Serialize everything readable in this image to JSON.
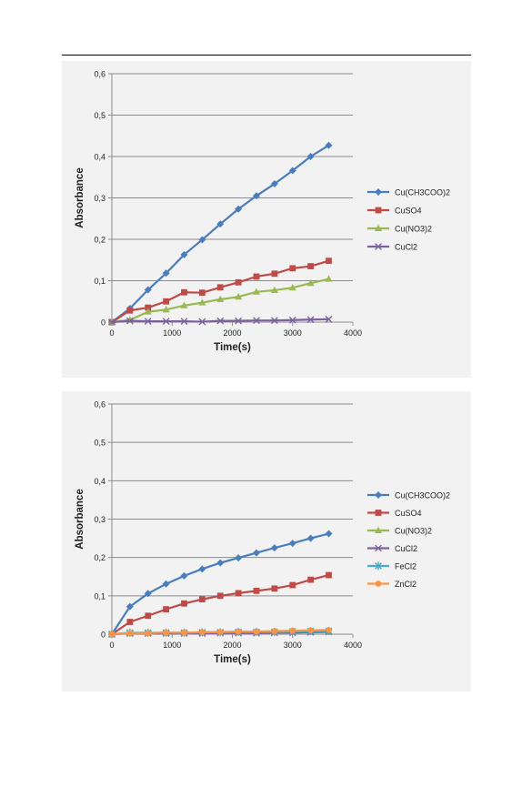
{
  "chart_data": [
    {
      "type": "line",
      "xlabel": "Time(s)",
      "ylabel": "Absorbance",
      "xlim": [
        0,
        4000
      ],
      "ylim": [
        0,
        0.6
      ],
      "x_ticks": [
        "0",
        "1000",
        "2000",
        "3000",
        "4000"
      ],
      "y_ticks": [
        "0",
        "0,1",
        "0,2",
        "0,3",
        "0,4",
        "0,5",
        "0,6"
      ],
      "grid": "horizontal",
      "legend_position": "right",
      "x": [
        0,
        300,
        600,
        900,
        1200,
        1500,
        1800,
        2100,
        2400,
        2700,
        3000,
        3300,
        3600
      ],
      "series": [
        {
          "name": "Cu(CH3COO)2",
          "color": "#4a7ebb",
          "marker": "diamond",
          "values": [
            0.0,
            0.033,
            0.078,
            0.118,
            0.163,
            0.199,
            0.237,
            0.273,
            0.305,
            0.334,
            0.366,
            0.4,
            0.427
          ]
        },
        {
          "name": "CuSO4",
          "color": "#be4b48",
          "marker": "square",
          "values": [
            0.0,
            0.028,
            0.035,
            0.05,
            0.072,
            0.071,
            0.084,
            0.096,
            0.11,
            0.117,
            0.13,
            0.135,
            0.148
          ]
        },
        {
          "name": "Cu(NO3)2",
          "color": "#98b954",
          "marker": "triangle",
          "values": [
            0.0,
            0.005,
            0.025,
            0.03,
            0.04,
            0.047,
            0.055,
            0.061,
            0.073,
            0.077,
            0.083,
            0.094,
            0.104
          ]
        },
        {
          "name": "CuCl2",
          "color": "#7d60a0",
          "marker": "x",
          "values": [
            0.0,
            0.003,
            0.002,
            0.002,
            0.002,
            0.001,
            0.003,
            0.003,
            0.004,
            0.004,
            0.005,
            0.006,
            0.007
          ]
        }
      ]
    },
    {
      "type": "line",
      "xlabel": "Time(s)",
      "ylabel": "Absorbance",
      "xlim": [
        0,
        4000
      ],
      "ylim": [
        0,
        0.6
      ],
      "x_ticks": [
        "0",
        "1000",
        "2000",
        "3000",
        "4000"
      ],
      "y_ticks": [
        "0",
        "0,1",
        "0,2",
        "0,3",
        "0,4",
        "0,5",
        "0,6"
      ],
      "grid": "horizontal",
      "legend_position": "right",
      "x": [
        0,
        300,
        600,
        900,
        1200,
        1500,
        1800,
        2100,
        2400,
        2700,
        3000,
        3300,
        3600
      ],
      "series": [
        {
          "name": "Cu(CH3COO)2",
          "color": "#4a7ebb",
          "marker": "diamond",
          "values": [
            0.0,
            0.072,
            0.106,
            0.131,
            0.152,
            0.17,
            0.186,
            0.199,
            0.212,
            0.225,
            0.237,
            0.25,
            0.262
          ]
        },
        {
          "name": "CuSO4",
          "color": "#be4b48",
          "marker": "square",
          "values": [
            0.0,
            0.032,
            0.048,
            0.065,
            0.08,
            0.091,
            0.1,
            0.107,
            0.113,
            0.119,
            0.128,
            0.142,
            0.154
          ]
        },
        {
          "name": "Cu(NO3)2",
          "color": "#98b954",
          "marker": "triangle",
          "values": [
            0.0,
            0.002,
            0.003,
            0.003,
            0.004,
            0.004,
            0.005,
            0.005,
            0.005,
            0.006,
            0.006,
            0.007,
            0.008
          ]
        },
        {
          "name": "CuCl2",
          "color": "#7d60a0",
          "marker": "x",
          "values": [
            0.0,
            0.002,
            0.002,
            0.002,
            0.002,
            0.002,
            0.003,
            0.003,
            0.003,
            0.004,
            0.004,
            0.005,
            0.006
          ]
        },
        {
          "name": "FeCl2",
          "color": "#4bacc6",
          "marker": "star",
          "values": [
            0.0,
            0.004,
            0.004,
            0.004,
            0.004,
            0.005,
            0.005,
            0.006,
            0.006,
            0.006,
            0.007,
            0.008,
            0.008
          ]
        },
        {
          "name": "ZnCl2",
          "color": "#f79646",
          "marker": "circle",
          "values": [
            0.0,
            0.003,
            0.003,
            0.004,
            0.004,
            0.005,
            0.006,
            0.007,
            0.007,
            0.008,
            0.009,
            0.01,
            0.011
          ]
        }
      ]
    }
  ]
}
